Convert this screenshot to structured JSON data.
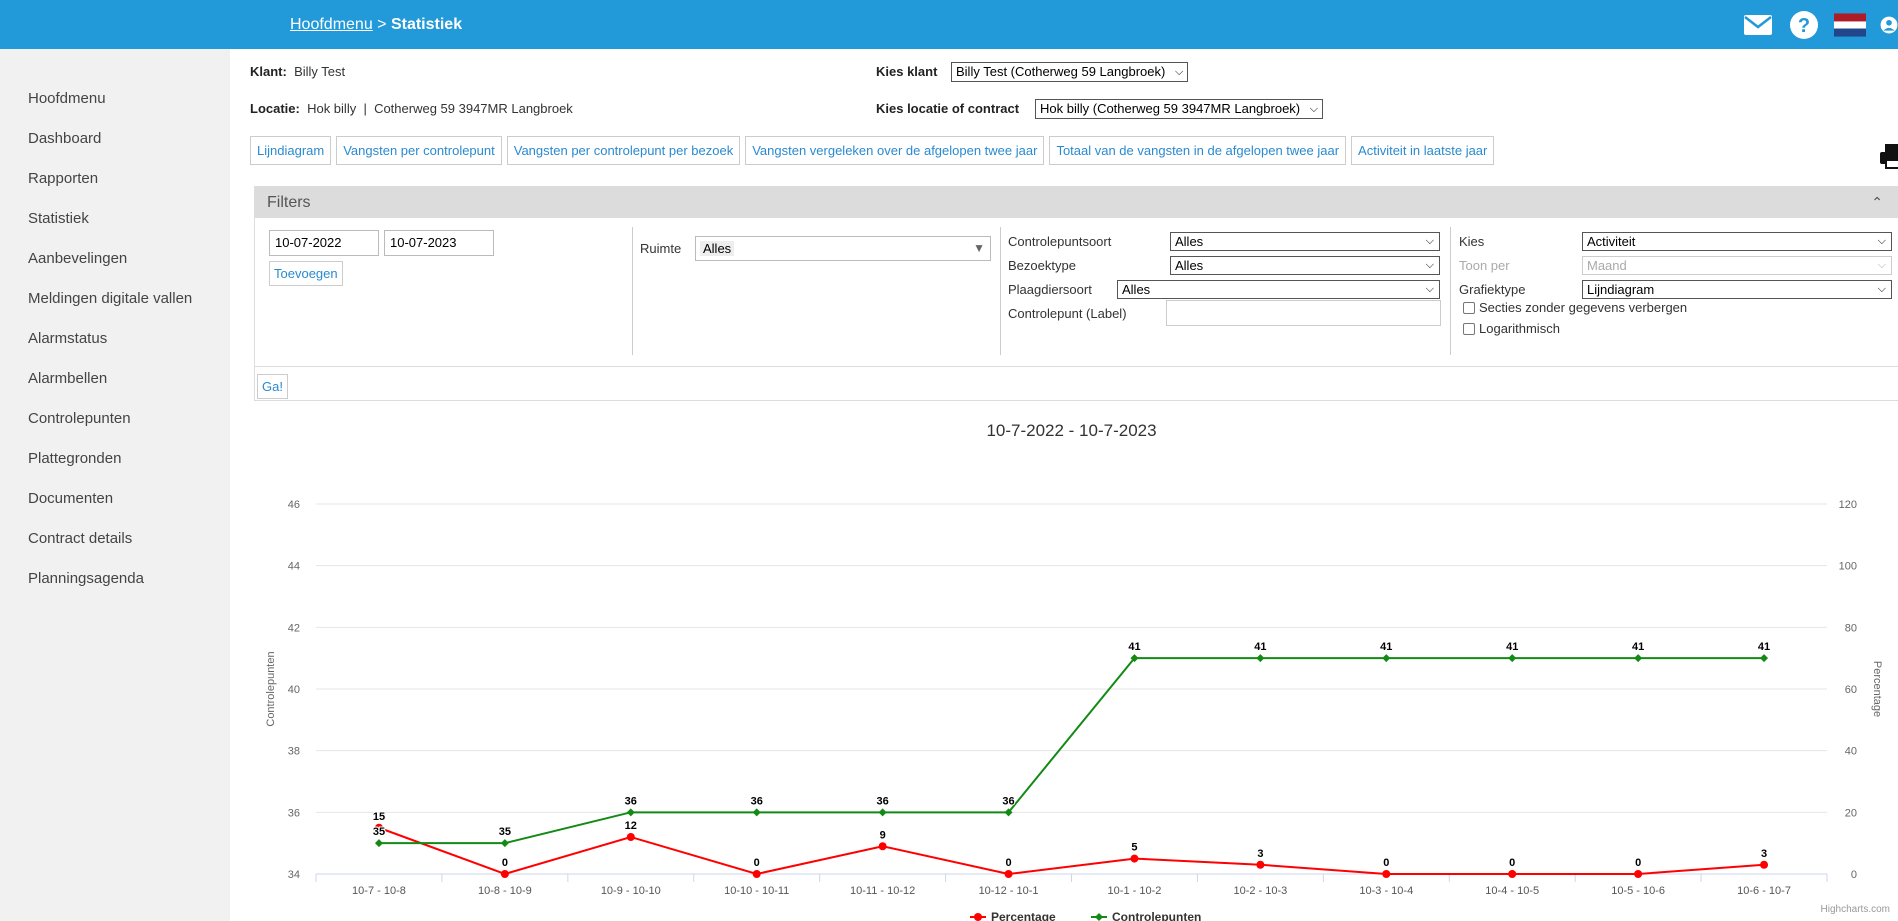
{
  "header": {
    "breadcrumb_home": "Hoofdmenu",
    "breadcrumb_sep": " > ",
    "breadcrumb_current": "Statistiek",
    "icons": [
      "mail-icon",
      "help-icon",
      "dutch-flag-icon",
      "user-icon"
    ],
    "bar_color": "#2299d8"
  },
  "sidebar": {
    "items": [
      {
        "label": "Hoofdmenu"
      },
      {
        "label": "Dashboard"
      },
      {
        "label": "Rapporten"
      },
      {
        "label": "Statistiek"
      },
      {
        "label": "Aanbevelingen"
      },
      {
        "label": "Meldingen digitale vallen"
      },
      {
        "label": "Alarmstatus"
      },
      {
        "label": "Alarmbellen"
      },
      {
        "label": "Controlepunten"
      },
      {
        "label": "Plattegronden"
      },
      {
        "label": "Documenten"
      },
      {
        "label": "Contract details"
      },
      {
        "label": "Planningsagenda"
      }
    ]
  },
  "client": {
    "klant_label": "Klant:",
    "klant_value": "Billy Test",
    "locatie_label": "Locatie:",
    "locatie_value": "Hok billy",
    "locatie_sep": "|",
    "locatie_address": "Cotherweg 59 3947MR Langbroek",
    "kies_klant_label": "Kies klant",
    "kies_klant_value": "Billy Test (Cotherweg 59 Langbroek)",
    "kies_locatie_label": "Kies locatie of contract",
    "kies_locatie_value": "Hok billy (Cotherweg 59 3947MR Langbroek)"
  },
  "tabs": [
    {
      "label": "Lijndiagram"
    },
    {
      "label": "Vangsten per controlepunt"
    },
    {
      "label": "Vangsten per controlepunt per bezoek"
    },
    {
      "label": "Vangsten vergeleken over de afgelopen twee jaar"
    },
    {
      "label": "Totaal van de vangsten in de afgelopen twee jaar"
    },
    {
      "label": "Activiteit in laatste jaar"
    }
  ],
  "filters": {
    "title": "Filters",
    "date_from": "10-07-2022",
    "date_to": "10-07-2023",
    "add_label": "Toevoegen",
    "ruimte_label": "Ruimte",
    "ruimte_value": "Alles",
    "controlepuntsoort_label": "Controlepuntsoort",
    "controlepuntsoort_value": "Alles",
    "bezoektype_label": "Bezoektype",
    "bezoektype_value": "Alles",
    "plaagdiersoort_label": "Plaagdiersoort",
    "plaagdiersoort_value": "Alles",
    "controlepunt_label": "Controlepunt (Label)",
    "controlepunt_value": "",
    "kies_label": "Kies",
    "kies_value": "Activiteit",
    "toon_per_label": "Toon per",
    "toon_per_value": "Maand",
    "grafiektype_label": "Grafiektype",
    "grafiektype_value": "Lijndiagram",
    "hide_empty_label": "Secties zonder gegevens verbergen",
    "log_label": "Logarithmisch",
    "go_label": "Ga!"
  },
  "chart_data": {
    "type": "line",
    "title": "10-7-2022 - 10-7-2023",
    "categories": [
      "10-7 - 10-8",
      "10-8 - 10-9",
      "10-9 - 10-10",
      "10-10 - 10-11",
      "10-11 - 10-12",
      "10-12 - 10-1",
      "10-1 - 10-2",
      "10-2 - 10-3",
      "10-3 - 10-4",
      "10-4 - 10-5",
      "10-5 - 10-6",
      "10-6 - 10-7"
    ],
    "y_left": {
      "label": "Controlepunten",
      "range": [
        34,
        46
      ],
      "ticks": [
        34,
        36,
        38,
        40,
        42,
        44,
        46
      ]
    },
    "y_right": {
      "label": "Percentage",
      "range": [
        0,
        120
      ],
      "ticks": [
        0,
        20,
        40,
        60,
        80,
        100,
        120
      ]
    },
    "series": [
      {
        "name": "Percentage",
        "axis": "right",
        "color": "#ff0000",
        "values": [
          15,
          0,
          12,
          0,
          9,
          0,
          5,
          3,
          0,
          0,
          0,
          3
        ]
      },
      {
        "name": "Controlepunten",
        "axis": "left",
        "color": "#138a13",
        "values": [
          35,
          35,
          36,
          36,
          36,
          36,
          41,
          41,
          41,
          41,
          41,
          41
        ]
      }
    ],
    "legend": "bottom-center",
    "grid": true,
    "credit": "Highcharts.com"
  }
}
